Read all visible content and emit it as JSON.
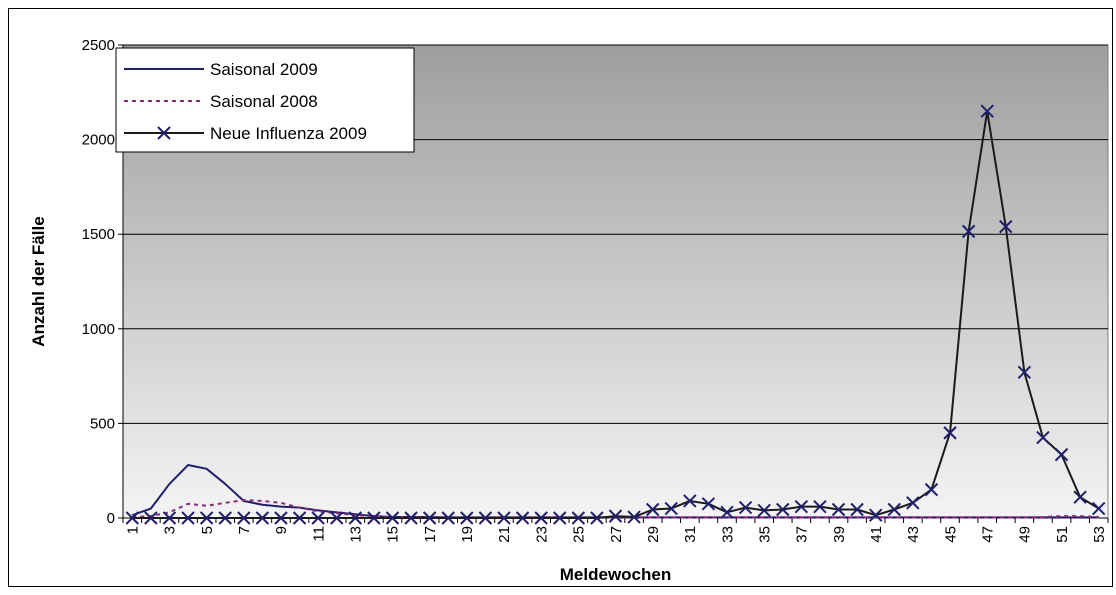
{
  "chart_data": {
    "type": "line",
    "title": "",
    "xlabel": "Meldewochen",
    "ylabel": "Anzahl der Fälle",
    "ylim": [
      0,
      2500
    ],
    "yticks": [
      0,
      500,
      1000,
      1500,
      2000,
      2500
    ],
    "x": [
      1,
      2,
      3,
      4,
      5,
      6,
      7,
      8,
      9,
      10,
      11,
      12,
      13,
      14,
      15,
      16,
      17,
      18,
      19,
      20,
      21,
      22,
      23,
      24,
      25,
      26,
      27,
      28,
      29,
      30,
      31,
      32,
      33,
      34,
      35,
      36,
      37,
      38,
      39,
      40,
      41,
      42,
      43,
      44,
      45,
      46,
      47,
      48,
      49,
      50,
      51,
      52,
      53
    ],
    "xticks": [
      "1",
      "3",
      "5",
      "7",
      "9",
      "11",
      "13",
      "15",
      "17",
      "19",
      "21",
      "23",
      "25",
      "27",
      "29",
      "31",
      "33",
      "35",
      "37",
      "39",
      "41",
      "43",
      "45",
      "47",
      "49",
      "51",
      "53"
    ],
    "grid": true,
    "legend_position": "top-left",
    "series": [
      {
        "name": "Saisonal 2009",
        "color": "#1f1f6e",
        "style": "solid",
        "values": [
          15,
          50,
          180,
          280,
          260,
          180,
          90,
          70,
          60,
          55,
          40,
          30,
          20,
          10,
          5,
          5,
          5,
          3,
          3,
          3,
          3,
          3,
          3,
          3,
          3,
          3,
          3,
          3,
          3,
          3,
          3,
          3,
          3,
          3,
          3,
          3,
          3,
          3,
          3,
          3,
          3,
          3,
          3,
          3,
          3,
          3,
          3,
          3,
          3,
          3,
          3,
          3,
          3
        ]
      },
      {
        "name": "Saisonal 2008",
        "color": "#8b2a7a",
        "style": "dashed",
        "values": [
          5,
          10,
          30,
          75,
          65,
          80,
          95,
          90,
          80,
          55,
          35,
          25,
          15,
          8,
          5,
          5,
          3,
          3,
          3,
          3,
          3,
          3,
          3,
          3,
          3,
          3,
          3,
          3,
          3,
          3,
          3,
          3,
          3,
          3,
          3,
          3,
          3,
          3,
          3,
          3,
          3,
          3,
          3,
          3,
          3,
          3,
          3,
          3,
          3,
          5,
          10,
          10,
          5
        ]
      },
      {
        "name": "Neue Influenza 2009",
        "color": "#1a1a1a",
        "marker_color": "#1f1f6e",
        "style": "solid-x",
        "values": [
          0,
          0,
          0,
          0,
          0,
          0,
          0,
          0,
          0,
          0,
          0,
          0,
          0,
          0,
          0,
          0,
          0,
          0,
          0,
          0,
          0,
          0,
          0,
          0,
          0,
          0,
          10,
          5,
          45,
          50,
          90,
          75,
          30,
          55,
          40,
          45,
          60,
          60,
          45,
          45,
          15,
          45,
          80,
          150,
          450,
          1515,
          2150,
          1540,
          770,
          425,
          335,
          110,
          50
        ]
      }
    ]
  }
}
